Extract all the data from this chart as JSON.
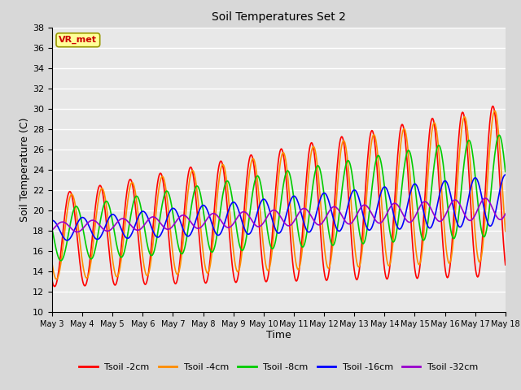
{
  "title": "Soil Temperatures Set 2",
  "xlabel": "Time",
  "ylabel": "Soil Temperature (C)",
  "ylim": [
    10,
    38
  ],
  "yticks": [
    10,
    12,
    14,
    16,
    18,
    20,
    22,
    24,
    26,
    28,
    30,
    32,
    34,
    36,
    38
  ],
  "xtick_labels": [
    "May 3",
    "May 4",
    "May 5",
    "May 6",
    "May 7",
    "May 8",
    "May 9",
    "May 10",
    "May 11",
    "May 12",
    "May 13",
    "May 14",
    "May 15",
    "May 16",
    "May 17",
    "May 18"
  ],
  "series_colors": {
    "Tsoil -2cm": "#ff0000",
    "Tsoil -4cm": "#ff8c00",
    "Tsoil -8cm": "#00cc00",
    "Tsoil -16cm": "#0000ff",
    "Tsoil -32cm": "#9900cc"
  },
  "linewidth": 1.2,
  "plot_bg_color": "#e8e8e8",
  "fig_bg_color": "#d8d8d8",
  "grid_color": "#ffffff",
  "annotation_text": "VR_met",
  "annotation_color": "#cc0000",
  "annotation_bg": "#ffff99",
  "annotation_border": "#999900"
}
